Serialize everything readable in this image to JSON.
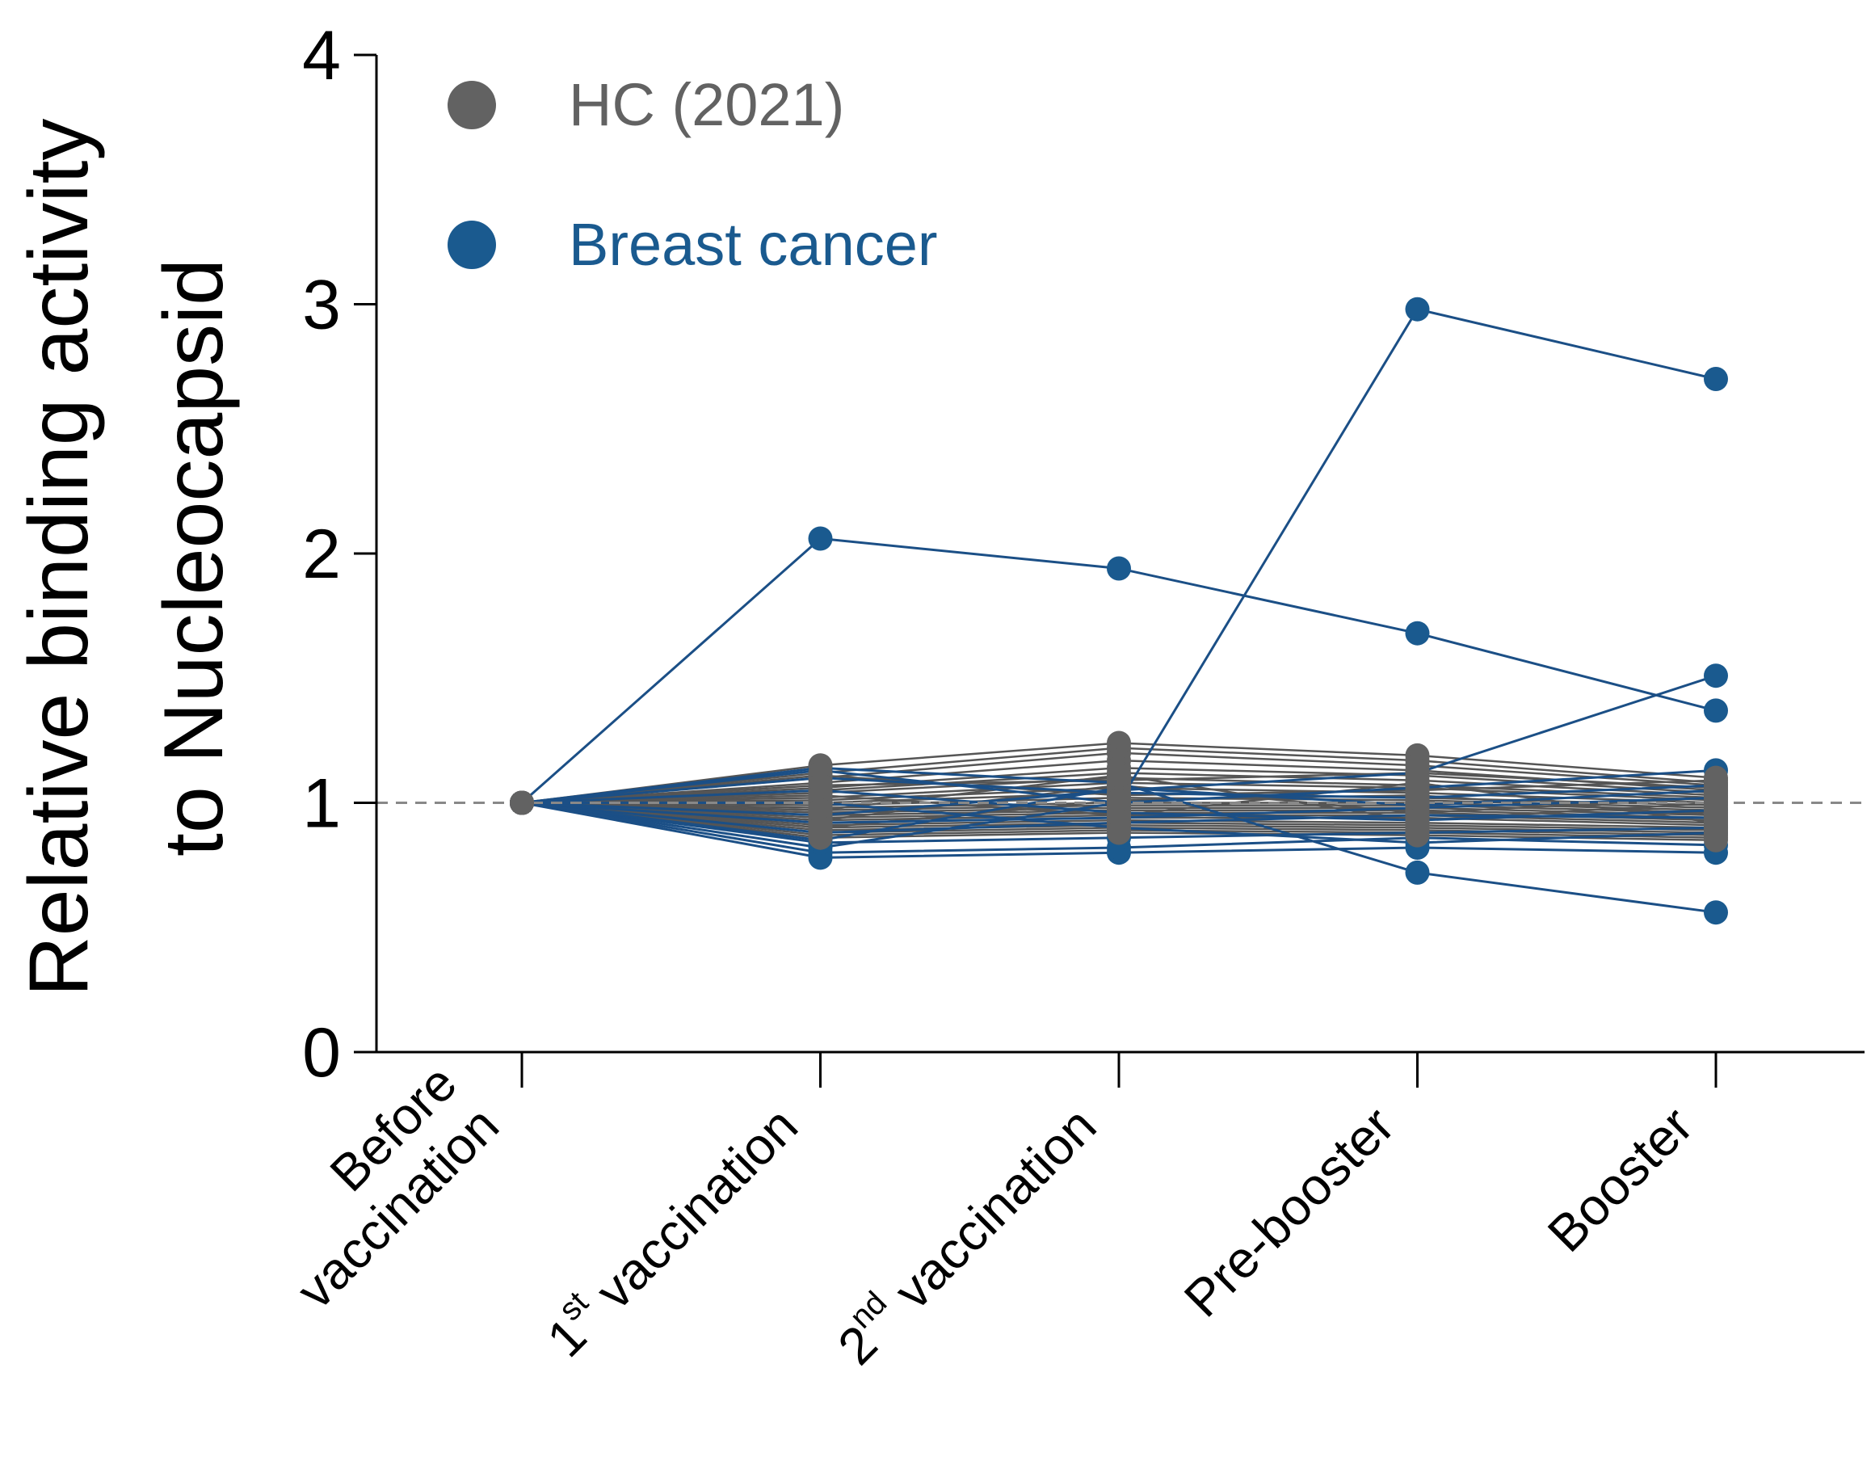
{
  "chart_data": {
    "type": "line",
    "title": "",
    "ylabel_lines": [
      "Relative binding activity",
      "to Nucleocapsid"
    ],
    "ylim": [
      0,
      4
    ],
    "yticks": [
      "0",
      "1",
      "2",
      "3",
      "4"
    ],
    "reference_line": 1,
    "categories": [
      {
        "lines": [
          [
            "Before"
          ],
          [
            "vaccination"
          ]
        ]
      },
      {
        "lines": [
          [
            "1",
            "st",
            " vaccination"
          ]
        ]
      },
      {
        "lines": [
          [
            "2",
            "nd",
            " vaccination"
          ]
        ]
      },
      {
        "lines": [
          [
            "Pre-booster"
          ]
        ]
      },
      {
        "lines": [
          [
            "Booster"
          ]
        ]
      }
    ],
    "legend": [
      {
        "label": "HC (2021)",
        "color": "#626262"
      },
      {
        "label": "Breast cancer",
        "color": "#1a5a8f"
      }
    ],
    "colors": {
      "hc_line": "#555555",
      "hc_marker": "#626262",
      "bc_line": "#1b4f86",
      "bc_marker": "#1a5a8f",
      "axis": "#000000",
      "ref": "#888888"
    },
    "series": [
      {
        "group": "HC (2021)",
        "values": [
          1,
          1.15,
          1.24,
          1.19,
          1.1
        ]
      },
      {
        "group": "HC (2021)",
        "values": [
          1,
          1.12,
          1.22,
          1.17,
          1.08
        ]
      },
      {
        "group": "HC (2021)",
        "values": [
          1,
          1.1,
          1.2,
          1.15,
          1.07
        ]
      },
      {
        "group": "HC (2021)",
        "values": [
          1,
          1.08,
          1.17,
          1.13,
          1.05
        ]
      },
      {
        "group": "HC (2021)",
        "values": [
          1,
          1.06,
          1.14,
          1.11,
          1.04
        ]
      },
      {
        "group": "HC (2021)",
        "values": [
          1,
          1.05,
          1.12,
          1.09,
          1.03
        ]
      },
      {
        "group": "HC (2021)",
        "values": [
          1,
          1.04,
          1.1,
          1.07,
          1.02
        ]
      },
      {
        "group": "HC (2021)",
        "values": [
          1,
          1.02,
          1.08,
          1.06,
          1.01
        ]
      },
      {
        "group": "HC (2021)",
        "values": [
          1,
          1.01,
          1.06,
          1.04,
          1.0
        ]
      },
      {
        "group": "HC (2021)",
        "values": [
          1,
          1.0,
          1.04,
          1.02,
          0.99
        ]
      },
      {
        "group": "HC (2021)",
        "values": [
          1,
          0.99,
          1.02,
          1.01,
          0.98
        ]
      },
      {
        "group": "HC (2021)",
        "values": [
          1,
          0.98,
          1.0,
          1.0,
          0.97
        ]
      },
      {
        "group": "HC (2021)",
        "values": [
          1,
          0.97,
          0.99,
          0.99,
          0.96
        ]
      },
      {
        "group": "HC (2021)",
        "values": [
          1,
          0.96,
          0.98,
          0.98,
          0.95
        ]
      },
      {
        "group": "HC (2021)",
        "values": [
          1,
          0.95,
          0.97,
          0.97,
          0.94
        ]
      },
      {
        "group": "HC (2021)",
        "values": [
          1,
          0.94,
          0.96,
          0.96,
          0.93
        ]
      },
      {
        "group": "HC (2021)",
        "values": [
          1,
          0.93,
          0.95,
          0.95,
          0.92
        ]
      },
      {
        "group": "HC (2021)",
        "values": [
          1,
          0.92,
          0.94,
          0.94,
          0.91
        ]
      },
      {
        "group": "HC (2021)",
        "values": [
          1,
          0.91,
          0.93,
          0.92,
          0.9
        ]
      },
      {
        "group": "HC (2021)",
        "values": [
          1,
          0.9,
          0.92,
          0.91,
          0.89
        ]
      },
      {
        "group": "HC (2021)",
        "values": [
          1,
          0.89,
          0.91,
          0.9,
          0.88
        ]
      },
      {
        "group": "HC (2021)",
        "values": [
          1,
          0.88,
          0.9,
          0.89,
          0.87
        ]
      },
      {
        "group": "HC (2021)",
        "values": [
          1,
          0.87,
          0.89,
          0.88,
          0.86
        ]
      },
      {
        "group": "HC (2021)",
        "values": [
          1,
          0.86,
          0.88,
          0.87,
          0.85
        ]
      },
      {
        "group": "HC (2021)",
        "values": [
          1,
          1.11,
          1.03,
          1.05,
          1.09
        ]
      },
      {
        "group": "HC (2021)",
        "values": [
          1,
          1.07,
          1.09,
          1.12,
          1.06
        ]
      },
      {
        "group": "HC (2021)",
        "values": [
          1,
          0.93,
          1.07,
          0.96,
          1.02
        ]
      },
      {
        "group": "HC (2021)",
        "values": [
          1,
          1.03,
          0.95,
          1.08,
          0.92
        ]
      },
      {
        "group": "HC (2021)",
        "values": [
          1,
          0.97,
          1.11,
          0.93,
          1.0
        ]
      },
      {
        "group": "HC (2021)",
        "values": [
          1,
          0.9,
          1.01,
          1.03,
          0.95
        ]
      },
      {
        "group": "Breast cancer",
        "values": [
          1,
          2.06,
          1.94,
          1.68,
          1.37
        ]
      },
      {
        "group": "Breast cancer",
        "values": [
          1,
          0.82,
          1.0,
          2.98,
          2.7
        ]
      },
      {
        "group": "Breast cancer",
        "values": [
          1,
          0.95,
          1.05,
          1.12,
          1.51
        ]
      },
      {
        "group": "Breast cancer",
        "values": [
          1,
          1.14,
          1.08,
          0.72,
          0.56
        ]
      },
      {
        "group": "Breast cancer",
        "values": [
          1,
          0.78,
          0.8,
          0.82,
          0.8
        ]
      },
      {
        "group": "Breast cancer",
        "values": [
          1,
          0.8,
          0.82,
          0.86,
          0.83
        ]
      },
      {
        "group": "Breast cancer",
        "values": [
          1,
          1.13,
          1.0,
          1.06,
          1.13
        ]
      },
      {
        "group": "Breast cancer",
        "values": [
          1,
          0.84,
          0.86,
          0.88,
          0.9
        ]
      },
      {
        "group": "Breast cancer",
        "values": [
          1,
          1.1,
          1.04,
          1.02,
          1.07
        ]
      },
      {
        "group": "Breast cancer",
        "values": [
          1,
          0.88,
          0.92,
          0.95,
          0.94
        ]
      },
      {
        "group": "Breast cancer",
        "values": [
          1,
          0.92,
          0.94,
          0.98,
          1.02
        ]
      },
      {
        "group": "Breast cancer",
        "values": [
          1,
          1.05,
          0.96,
          0.93,
          0.97
        ]
      },
      {
        "group": "Breast cancer",
        "values": [
          1,
          0.85,
          1.06,
          0.99,
          1.05
        ]
      },
      {
        "group": "Breast cancer",
        "values": [
          1,
          1.0,
          0.9,
          0.84,
          0.88
        ]
      }
    ]
  }
}
